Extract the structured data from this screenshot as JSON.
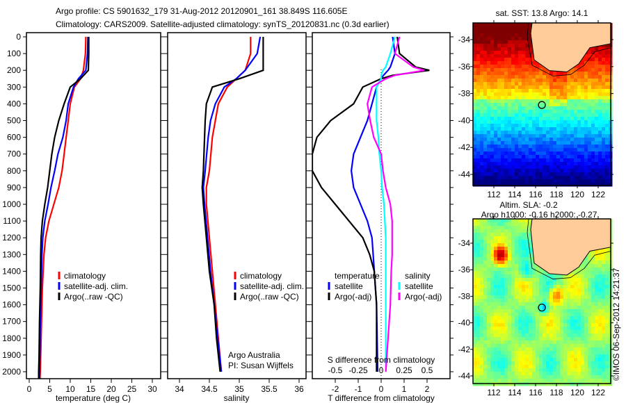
{
  "title_line1": "Argo profile: CS 5901632_179 31-Aug-2012 20120901_161 38.849S 116.605E",
  "title_line2": "Climatology: CARS2009. Satellite-adjusted climatology: synTS_20120831.nc (0.3d earlier)",
  "colors": {
    "climatology": "#ff0000",
    "satellite": "#0000ff",
    "argo": "#000000",
    "sat_salinity": "#00ffff",
    "argo_salinity": "#ff00ff",
    "land": "#ffcc99"
  },
  "depth_ticks": [
    0,
    100,
    200,
    300,
    400,
    500,
    600,
    700,
    800,
    900,
    1000,
    1100,
    1200,
    1300,
    1400,
    1500,
    1600,
    1700,
    1800,
    1900,
    2000
  ],
  "chart_data": [
    {
      "type": "line",
      "xlabel": "temperature (deg C)",
      "ylabel": "depth",
      "ylim": [
        2040,
        0
      ],
      "xlim": [
        -1,
        32
      ],
      "xticks": [
        0,
        5,
        10,
        15,
        20,
        25,
        30
      ],
      "legend": [
        "climatology",
        "satellite-adj. clim.",
        "Argo(..raw -QC)"
      ],
      "depth": [
        0,
        100,
        200,
        250,
        300,
        400,
        500,
        600,
        700,
        800,
        900,
        1000,
        1100,
        1200,
        1300,
        1500,
        1700,
        1900,
        2000,
        2050
      ],
      "series": [
        {
          "name": "climatology",
          "values": [
            13.8,
            13.7,
            13.2,
            12.5,
            11,
            10,
            9.5,
            9,
            8.5,
            8,
            7.2,
            6,
            4.8,
            4,
            3.6,
            3.2,
            3,
            2.8,
            2.7,
            2.6
          ]
        },
        {
          "name": "satellite-adj. clim.",
          "values": [
            14.3,
            14.2,
            13.8,
            12,
            10.8,
            9.5,
            9,
            8.2,
            7,
            6.2,
            5.3,
            4.6,
            3.8,
            3.3,
            3.1,
            2.9,
            2.7,
            2.6,
            2.5,
            2.5
          ]
        },
        {
          "name": "Argo(..raw -QC)",
          "values": [
            14.5,
            14.5,
            14.4,
            12.5,
            10,
            8.5,
            7.2,
            6.2,
            5.5,
            5,
            4.5,
            3.8,
            3.2,
            2.9,
            2.8,
            2.7,
            2.5,
            2.4,
            2.3,
            2.3
          ]
        }
      ]
    },
    {
      "type": "line",
      "xlabel": "salinity",
      "ylabel": "depth",
      "ylim": [
        2040,
        0
      ],
      "xlim": [
        33.8,
        36.1
      ],
      "xticks": [
        34,
        34.5,
        35,
        35.5,
        36
      ],
      "legend": [
        "climatology",
        "satellite-adj. clim.",
        "Argo(..raw -QC)"
      ],
      "annotation": [
        "Argo Australia",
        "PI: Susan Wijffels"
      ],
      "depth": [
        0,
        100,
        200,
        250,
        300,
        400,
        500,
        600,
        800,
        900,
        1000,
        1200,
        1400,
        1600,
        1800,
        2000
      ],
      "series": [
        {
          "name": "climatology",
          "values": [
            35.19,
            35.19,
            35.1,
            34.95,
            34.8,
            34.65,
            34.6,
            34.55,
            34.5,
            34.45,
            34.45,
            34.5,
            34.55,
            34.6,
            34.65,
            34.7
          ]
        },
        {
          "name": "satellite-adj. clim.",
          "values": [
            35.35,
            35.3,
            35.1,
            34.95,
            34.75,
            34.6,
            34.52,
            34.48,
            34.43,
            34.4,
            34.42,
            34.47,
            34.52,
            34.58,
            34.64,
            34.7
          ]
        },
        {
          "name": "Argo(..raw -QC)",
          "values": [
            35.4,
            35.4,
            35.4,
            35.0,
            34.55,
            34.45,
            34.43,
            34.42,
            34.4,
            34.38,
            34.4,
            34.45,
            34.5,
            34.58,
            34.62,
            34.68
          ]
        }
      ]
    },
    {
      "type": "line",
      "xlabel": "T difference from climatology",
      "x2label": "S difference from climatology",
      "ylim": [
        2040,
        0
      ],
      "xlim": [
        -3,
        3
      ],
      "xticks": [
        "-2",
        "-1",
        "0",
        "1",
        "2"
      ],
      "x2ticks": [
        "-0.5",
        "-0.25",
        "0",
        "0.25",
        "0.5"
      ],
      "legend_t_title": "temperature",
      "legend_s_title": "salinity",
      "legend_t": [
        "satellite",
        "Argo(-adj)"
      ],
      "legend_s": [
        "satellite",
        "Argo(-adj)"
      ],
      "depth": [
        0,
        100,
        180,
        200,
        230,
        250,
        300,
        400,
        500,
        600,
        700,
        800,
        900,
        1000,
        1100,
        1200,
        1300,
        1400,
        1600,
        2000
      ],
      "series": [
        {
          "name": "T satellite",
          "axis": "T",
          "values": [
            0.5,
            0.6,
            0.4,
            0.3,
            0.1,
            0,
            -0.2,
            -0.4,
            -0.6,
            -0.9,
            -1.2,
            -1.3,
            -1.2,
            -0.9,
            -0.6,
            -0.4,
            -0.35,
            -0.3,
            -0.2,
            -0.15
          ]
        },
        {
          "name": "T Argo(-adj)",
          "axis": "T",
          "values": [
            0.7,
            0.8,
            1.5,
            2.1,
            0.5,
            0,
            -0.8,
            -1.2,
            -2.2,
            -2.8,
            -3,
            -3,
            -2.6,
            -2.0,
            -1.4,
            -0.8,
            -0.5,
            -0.3,
            -0.2,
            -0.2
          ]
        },
        {
          "name": "S satellite",
          "axis": "S",
          "values": [
            0.15,
            0.1,
            0.05,
            0.02,
            0,
            0,
            -0.05,
            -0.05,
            -0.05,
            -0.03,
            -0.02,
            0,
            0.01,
            0.03,
            0.04,
            0.05,
            0.05,
            0.05,
            0.05,
            0.05
          ]
        },
        {
          "name": "S Argo(-adj)",
          "axis": "S",
          "values": [
            0.2,
            0.15,
            0.35,
            0.47,
            0.15,
            0.05,
            -0.1,
            -0.15,
            -0.12,
            -0.08,
            0,
            0.02,
            0.05,
            0.1,
            0.12,
            0.12,
            0.12,
            0.11,
            0.1,
            0.05
          ]
        }
      ]
    }
  ],
  "maps": {
    "top_title": "sat. SST: 13.8 Argo: 14.1",
    "sla_label": "Altim. SLA: -0.2",
    "argo_h_label": "Argo h1000: -0.16 h2000: -0.27",
    "lat_ticks": [
      "-34",
      "-36",
      "-38",
      "-40",
      "-42",
      "-44"
    ],
    "lon_ticks": [
      "112",
      "114",
      "116",
      "118",
      "120",
      "122"
    ],
    "profile_lon": 116.605,
    "profile_lat": -38.849
  },
  "footer": "©IMOS 06-Sep-2012 14:21:37"
}
